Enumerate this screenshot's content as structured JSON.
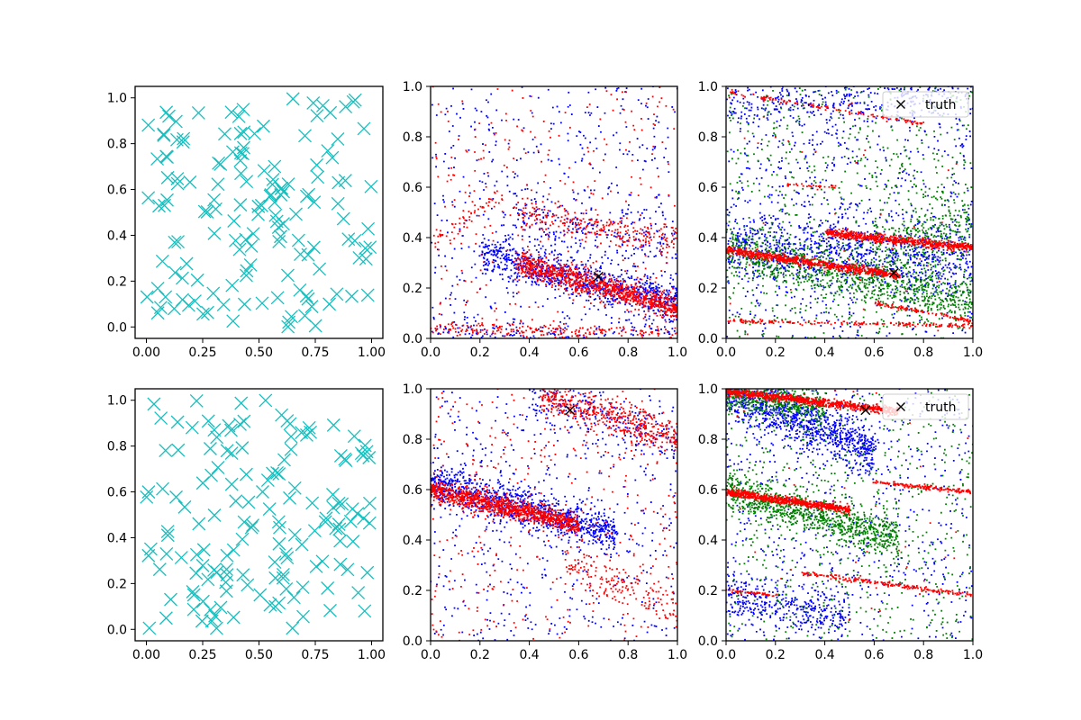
{
  "chart_data": [
    {
      "panel": "top-left",
      "type": "scatter",
      "xlim": [
        -0.05,
        1.05
      ],
      "ylim": [
        -0.05,
        1.05
      ],
      "xticks": [
        "0.00",
        "0.25",
        "0.50",
        "0.75",
        "1.00"
      ],
      "yticks": [
        "0.0",
        "0.2",
        "0.4",
        "0.6",
        "0.8",
        "1.0"
      ],
      "marker": "x",
      "color": "#17bfbf",
      "point_count": 150,
      "seed": 11,
      "description": "uniformly scattered cyan x markers"
    },
    {
      "panel": "top-middle",
      "type": "scatter",
      "xlim": [
        0,
        1
      ],
      "ylim": [
        0,
        1
      ],
      "xticks": [
        "0.0",
        "0.2",
        "0.4",
        "0.6",
        "0.8",
        "1.0"
      ],
      "yticks": [
        "0.0",
        "0.2",
        "0.4",
        "0.6",
        "0.8",
        "1.0"
      ],
      "series": [
        {
          "color": "#0000ff",
          "bands": [
            {
              "x": [
                0.2,
                1.0
              ],
              "y": [
                0.34,
                0.14
              ],
              "spread": 0.04,
              "count": 900
            },
            {
              "x": [
                0.0,
                1.0
              ],
              "y": [
                0.03,
                0.02
              ],
              "spread": 0.03,
              "count": 150
            },
            {
              "x": [
                0.3,
                1.0
              ],
              "y": [
                0.5,
                0.38
              ],
              "spread": 0.06,
              "count": 220
            }
          ],
          "noise": 450
        },
        {
          "color": "#ff0000",
          "bands": [
            {
              "x": [
                0.35,
                1.0
              ],
              "y": [
                0.3,
                0.12
              ],
              "spread": 0.025,
              "count": 900
            },
            {
              "x": [
                0.0,
                1.0
              ],
              "y": [
                0.04,
                0.02
              ],
              "spread": 0.015,
              "count": 200
            },
            {
              "x": [
                0.35,
                1.0
              ],
              "y": [
                0.5,
                0.38
              ],
              "spread": 0.03,
              "count": 250
            },
            {
              "x": [
                0.0,
                0.3
              ],
              "y": [
                0.38,
                0.58
              ],
              "spread": 0.02,
              "count": 60
            }
          ],
          "noise": 300
        }
      ],
      "truth": {
        "x": 0.68,
        "y": 0.245
      }
    },
    {
      "panel": "top-right",
      "type": "scatter",
      "xlim": [
        0,
        1
      ],
      "ylim": [
        0,
        1
      ],
      "xticks": [
        "0.0",
        "0.2",
        "0.4",
        "0.6",
        "0.8",
        "1.0"
      ],
      "yticks": [
        "0.0",
        "0.2",
        "0.4",
        "0.6",
        "0.8",
        "1.0"
      ],
      "legend": {
        "label": "truth",
        "position": "upper right"
      },
      "series": [
        {
          "color": "#0000ff",
          "bands": [
            {
              "x": [
                0.0,
                1.0
              ],
              "y": [
                0.36,
                0.32
              ],
              "spread": 0.07,
              "count": 900
            },
            {
              "x": [
                0.0,
                1.0
              ],
              "y": [
                0.92,
                0.98
              ],
              "spread": 0.05,
              "count": 350
            }
          ],
          "noise": 700
        },
        {
          "color": "#008000",
          "bands": [
            {
              "x": [
                0.0,
                1.0
              ],
              "y": [
                0.35,
                0.14
              ],
              "spread": 0.05,
              "count": 900
            },
            {
              "x": [
                0.6,
                1.0
              ],
              "y": [
                0.35,
                0.45
              ],
              "spread": 0.08,
              "count": 300
            }
          ],
          "noise": 700
        },
        {
          "color": "#ff0000",
          "bands": [
            {
              "x": [
                0.0,
                0.7
              ],
              "y": [
                0.35,
                0.25
              ],
              "spread": 0.008,
              "count": 700
            },
            {
              "x": [
                0.4,
                1.0
              ],
              "y": [
                0.42,
                0.36
              ],
              "spread": 0.008,
              "count": 600
            },
            {
              "x": [
                0.0,
                1.0
              ],
              "y": [
                0.07,
                0.05
              ],
              "spread": 0.004,
              "count": 180
            },
            {
              "x": [
                0.0,
                0.8
              ],
              "y": [
                0.98,
                0.85
              ],
              "spread": 0.005,
              "count": 120
            },
            {
              "x": [
                0.6,
                1.0
              ],
              "y": [
                0.14,
                0.07
              ],
              "spread": 0.004,
              "count": 100
            },
            {
              "x": [
                0.25,
                0.45
              ],
              "y": [
                0.61,
                0.6
              ],
              "spread": 0.004,
              "count": 30
            }
          ],
          "noise": 40
        }
      ],
      "truth": {
        "x": 0.68,
        "y": 0.26
      }
    },
    {
      "panel": "bottom-left",
      "type": "scatter",
      "xlim": [
        -0.05,
        1.05
      ],
      "ylim": [
        -0.05,
        1.05
      ],
      "xticks": [
        "0.00",
        "0.25",
        "0.50",
        "0.75",
        "1.00"
      ],
      "yticks": [
        "0.0",
        "0.2",
        "0.4",
        "0.6",
        "0.8",
        "1.0"
      ],
      "marker": "x",
      "color": "#17bfbf",
      "point_count": 150,
      "seed": 29,
      "description": "uniformly scattered cyan x markers"
    },
    {
      "panel": "bottom-middle",
      "type": "scatter",
      "xlim": [
        0,
        1
      ],
      "ylim": [
        0,
        1
      ],
      "xticks": [
        "0.0",
        "0.2",
        "0.4",
        "0.6",
        "0.8",
        "1.0"
      ],
      "yticks": [
        "0.0",
        "0.2",
        "0.4",
        "0.6",
        "0.8",
        "1.0"
      ],
      "series": [
        {
          "color": "#0000ff",
          "bands": [
            {
              "x": [
                0.0,
                0.75
              ],
              "y": [
                0.63,
                0.42
              ],
              "spread": 0.04,
              "count": 1000
            },
            {
              "x": [
                0.4,
                1.0
              ],
              "y": [
                0.98,
                0.8
              ],
              "spread": 0.05,
              "count": 200
            }
          ],
          "noise": 500
        },
        {
          "color": "#ff0000",
          "bands": [
            {
              "x": [
                0.0,
                0.6
              ],
              "y": [
                0.6,
                0.46
              ],
              "spread": 0.02,
              "count": 1000
            },
            {
              "x": [
                0.45,
                1.0
              ],
              "y": [
                0.98,
                0.8
              ],
              "spread": 0.035,
              "count": 450
            },
            {
              "x": [
                0.55,
                1.0
              ],
              "y": [
                0.3,
                0.12
              ],
              "spread": 0.04,
              "count": 150
            }
          ],
          "noise": 400
        }
      ],
      "truth": {
        "x": 0.565,
        "y": 0.915
      }
    },
    {
      "panel": "bottom-right",
      "type": "scatter",
      "xlim": [
        0,
        1
      ],
      "ylim": [
        0,
        1
      ],
      "xticks": [
        "0.0",
        "0.2",
        "0.4",
        "0.6",
        "0.8",
        "1.0"
      ],
      "yticks": [
        "0.0",
        "0.2",
        "0.4",
        "0.6",
        "0.8",
        "1.0"
      ],
      "legend": {
        "label": "truth",
        "position": "upper right"
      },
      "series": [
        {
          "color": "#0000ff",
          "bands": [
            {
              "x": [
                0.0,
                0.6
              ],
              "y": [
                0.99,
                0.75
              ],
              "spread": 0.05,
              "count": 1000
            },
            {
              "x": [
                0.0,
                0.5
              ],
              "y": [
                0.17,
                0.1
              ],
              "spread": 0.05,
              "count": 350
            }
          ],
          "noise": 600
        },
        {
          "color": "#008000",
          "bands": [
            {
              "x": [
                0.0,
                0.7
              ],
              "y": [
                0.6,
                0.4
              ],
              "spread": 0.04,
              "count": 900
            },
            {
              "x": [
                0.0,
                0.4
              ],
              "y": [
                0.98,
                0.92
              ],
              "spread": 0.03,
              "count": 400
            }
          ],
          "noise": 600
        },
        {
          "color": "#ff0000",
          "bands": [
            {
              "x": [
                0.0,
                0.5
              ],
              "y": [
                0.59,
                0.52
              ],
              "spread": 0.007,
              "count": 700
            },
            {
              "x": [
                0.0,
                0.7
              ],
              "y": [
                0.99,
                0.91
              ],
              "spread": 0.008,
              "count": 800
            },
            {
              "x": [
                0.3,
                1.0
              ],
              "y": [
                0.27,
                0.18
              ],
              "spread": 0.005,
              "count": 200
            },
            {
              "x": [
                0.6,
                1.0
              ],
              "y": [
                0.63,
                0.59
              ],
              "spread": 0.004,
              "count": 150
            },
            {
              "x": [
                0.0,
                0.2
              ],
              "y": [
                0.2,
                0.18
              ],
              "spread": 0.004,
              "count": 50
            }
          ],
          "noise": 40
        }
      ],
      "truth": {
        "x": 0.565,
        "y": 0.915
      }
    }
  ]
}
